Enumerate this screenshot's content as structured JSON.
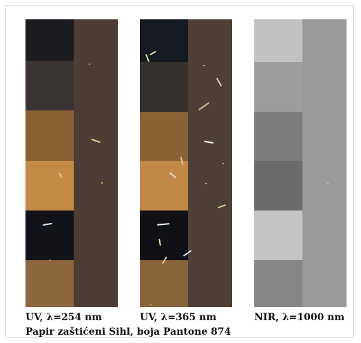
{
  "captions": {
    "panel_1": "UV, λ=254 nm",
    "panel_2": "UV, λ=365 nm",
    "panel_3": "NIR, λ=1000 nm"
  },
  "footnote": "Papir zaštićeni Sihl, boja Pantone 874",
  "colors": {
    "uv254_bands": [
      "#1c1c20",
      "#3a3533",
      "#8a6236",
      "#c48a45",
      "#121318",
      "#8c673d"
    ],
    "uv254_strip": "#4d3e35",
    "uv365_bands": [
      "#161a22",
      "#36302e",
      "#8a6335",
      "#c08947",
      "#101116",
      "#87643a"
    ],
    "uv365_strip": "#4e3f37",
    "nir_bands": [
      "#c2c2c2",
      "#9d9d9d",
      "#7c7c7c",
      "#6b6b6b",
      "#c4c4c4",
      "#858585"
    ],
    "nir_strip": "#999999"
  }
}
